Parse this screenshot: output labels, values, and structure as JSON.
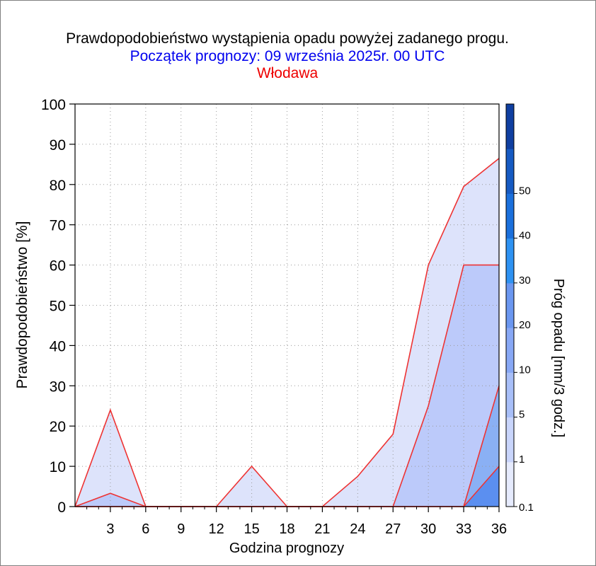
{
  "title": "Prawdopodobieństwo wystąpienia opadu powyżej zadanego progu.",
  "subtitle": "Początek prognozy: 09 września 2025r. 00 UTC",
  "location": "Włodawa",
  "colors": {
    "title": "#000000",
    "subtitle": "#0000ee",
    "location": "#ee0000",
    "outline": "#ee3333",
    "grid": "#9a9a9a"
  },
  "chart_data": {
    "type": "area",
    "xlabel": "Godzina prognozy",
    "ylabel": "Prawdopodobieństwo [%]",
    "xlim": [
      0,
      36
    ],
    "ylim": [
      0,
      100
    ],
    "xticks": [
      "3",
      "6",
      "9",
      "12",
      "15",
      "18",
      "21",
      "24",
      "27",
      "30",
      "33",
      "36"
    ],
    "yticks": [
      "0",
      "10",
      "20",
      "30",
      "40",
      "50",
      "60",
      "70",
      "80",
      "90",
      "100"
    ],
    "grid": true,
    "x": [
      0,
      3,
      6,
      9,
      12,
      15,
      18,
      21,
      24,
      27,
      30,
      33,
      36
    ],
    "series": [
      {
        "name": "0.1",
        "color": "#dde3fb",
        "values": [
          0,
          24,
          0,
          0,
          0,
          10,
          0,
          0,
          7.5,
          18,
          60,
          79.5,
          86.5
        ]
      },
      {
        "name": "1",
        "color": "#bccafa",
        "values": [
          0,
          3.3,
          0,
          0,
          0,
          0,
          0,
          0,
          0,
          0,
          25,
          60,
          60
        ]
      },
      {
        "name": "5",
        "color": "#8ab0f4",
        "values": [
          0,
          0,
          0,
          0,
          0,
          0,
          0,
          0,
          0,
          0,
          0,
          0,
          30
        ]
      },
      {
        "name": "10",
        "color": "#5b8ff0",
        "values": [
          0,
          0,
          0,
          0,
          0,
          0,
          0,
          0,
          0,
          0,
          0,
          0,
          10
        ]
      }
    ],
    "colorbar": {
      "label": "Próg opadu [mm/3 godz.]",
      "ticks": [
        "0.1",
        "1",
        "5",
        "10",
        "20",
        "30",
        "40",
        "50"
      ],
      "colors": [
        "#e6ebfd",
        "#c9d5fb",
        "#a8bff8",
        "#88a8f5",
        "#6b97f0",
        "#2e92f2",
        "#1b70dc",
        "#165ac2",
        "#0f3fa0"
      ]
    }
  }
}
